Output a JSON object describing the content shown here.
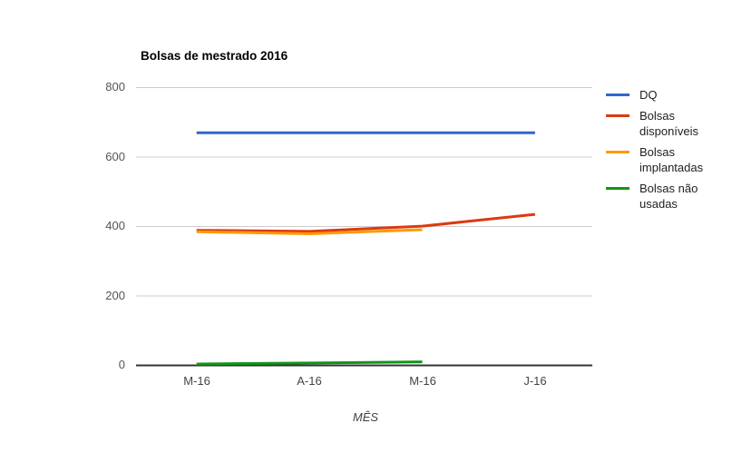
{
  "chart_data": {
    "type": "line",
    "title": "Bolsas de mestrado 2016",
    "xlabel": "MÊS",
    "ylabel": "",
    "categories": [
      "M-16",
      "A-16",
      "M-16",
      "J-16"
    ],
    "ylim": [
      0,
      800
    ],
    "yticks": [
      0,
      200,
      400,
      600,
      800
    ],
    "ytick_labels_desc": [
      "800",
      "600",
      "400",
      "200",
      "0"
    ],
    "grid": true,
    "legend_position": "right",
    "background_color": "#ffffff",
    "gridline_color": "#cccccc",
    "axis_line_color": "#333333",
    "series": [
      {
        "name": "DQ",
        "color": "#3366cc",
        "values": [
          670,
          670,
          670,
          670
        ]
      },
      {
        "name": "Bolsas disponíveis",
        "color": "#dc3912",
        "values": [
          389,
          386,
          401,
          435
        ]
      },
      {
        "name": "Bolsas implantadas",
        "color": "#ff9900",
        "values": [
          385,
          379,
          391,
          null
        ]
      },
      {
        "name": "Bolsas não usadas",
        "color": "#109618",
        "values": [
          4,
          7,
          10,
          null
        ]
      }
    ]
  }
}
